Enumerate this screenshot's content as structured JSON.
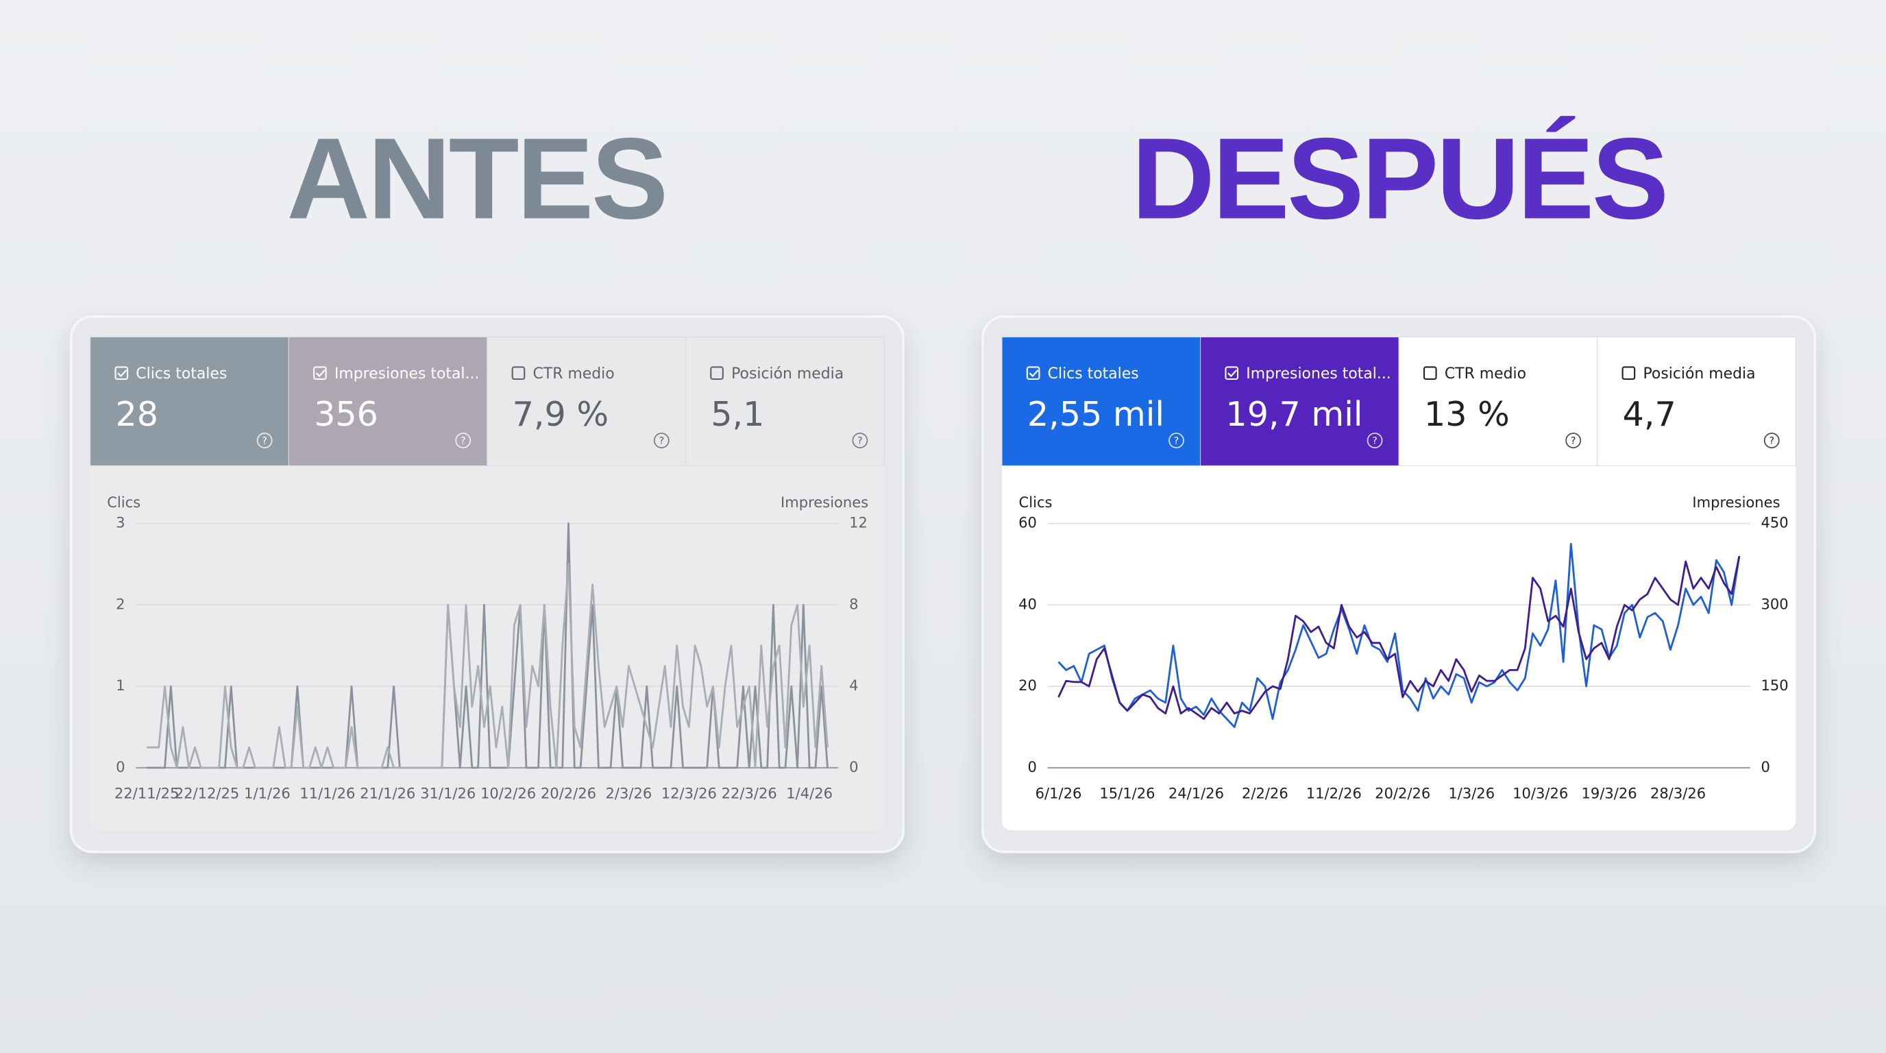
{
  "chart_data": [
    {
      "type": "line",
      "heading": "ANTES",
      "heading_color": "#7d8a96",
      "background": "#ebebed",
      "text_color": "#5f6368",
      "cards": [
        {
          "label": "Clics totales",
          "value": "28",
          "checked": true,
          "color": "#8e9ba4"
        },
        {
          "label": "Impresiones total...",
          "value": "356",
          "checked": true,
          "color": "#aca7b2"
        },
        {
          "label": "CTR medio",
          "value": "7,9 %",
          "checked": false,
          "color": "#e8e9eb"
        },
        {
          "label": "Posición media",
          "value": "5,1",
          "checked": false,
          "color": "#e8e9eb"
        }
      ],
      "y_label": "Clics",
      "y2_label": "Impresiones",
      "categories": [
        "22/11/25",
        null,
        null,
        null,
        null,
        null,
        null,
        null,
        null,
        null,
        "22/12/25",
        null,
        null,
        null,
        null,
        null,
        null,
        null,
        null,
        null,
        "1/1/26",
        null,
        null,
        null,
        null,
        null,
        null,
        null,
        null,
        null,
        "11/1/26",
        null,
        null,
        null,
        null,
        null,
        null,
        null,
        null,
        null,
        "21/1/26",
        null,
        null,
        null,
        null,
        null,
        null,
        null,
        null,
        null,
        "31/1/26",
        null,
        null,
        null,
        null,
        null,
        null,
        null,
        null,
        null,
        "10/2/26",
        null,
        null,
        null,
        null,
        null,
        null,
        null,
        null,
        null,
        "20/2/26",
        null,
        null,
        null,
        null,
        null,
        null,
        null,
        null,
        null,
        "2/3/26",
        null,
        null,
        null,
        null,
        null,
        null,
        null,
        null,
        null,
        "12/3/26",
        null,
        null,
        null,
        null,
        null,
        null,
        null,
        null,
        null,
        "22/3/26",
        null,
        null,
        null,
        null,
        null,
        null,
        null,
        null,
        null,
        "1/4/26",
        null,
        null,
        null
      ],
      "ylim": [
        0,
        3
      ],
      "yticks": [
        0,
        1,
        2,
        3
      ],
      "y2lim": [
        0,
        12
      ],
      "y2ticks": [
        0,
        4,
        8,
        12
      ],
      "series": [
        {
          "color": "#8a939b",
          "values": [
            0,
            0,
            0,
            0,
            1,
            0,
            0,
            0,
            0,
            0,
            0,
            0,
            0,
            0,
            1,
            0,
            0,
            0,
            0,
            0,
            0,
            0,
            0,
            0,
            0,
            1,
            0,
            0,
            0,
            0,
            0,
            0,
            0,
            0,
            1,
            0,
            0,
            0,
            0,
            0,
            0,
            1,
            0,
            0,
            0,
            0,
            0,
            0,
            0,
            0,
            2,
            1,
            0,
            1,
            0,
            0,
            2,
            0,
            0,
            0,
            0,
            1,
            2,
            0,
            0,
            0,
            2,
            0,
            0,
            0,
            3,
            0,
            0,
            1,
            2,
            0,
            0,
            0,
            1,
            0,
            0,
            0,
            0,
            1,
            0,
            0,
            0,
            0,
            1,
            0,
            0,
            0,
            0,
            0,
            1,
            0,
            0,
            0,
            0,
            1,
            0,
            1,
            0,
            0,
            2,
            0,
            0,
            1,
            0,
            2,
            0,
            0,
            1,
            0
          ]
        },
        {
          "color": "#a9aeb4",
          "axis": "y2",
          "values": [
            1,
            1,
            1,
            4,
            1,
            0,
            2,
            0,
            1,
            0,
            0,
            0,
            0,
            4,
            1,
            0,
            0,
            1,
            0,
            0,
            0,
            0,
            2,
            0,
            0,
            3,
            0,
            0,
            1,
            0,
            1,
            0,
            0,
            0,
            2,
            0,
            0,
            0,
            0,
            0,
            1,
            0,
            0,
            0,
            0,
            0,
            0,
            0,
            0,
            0,
            8,
            4,
            2,
            8,
            3,
            5,
            2,
            4,
            1,
            3,
            0,
            7,
            8,
            2,
            5,
            4,
            8,
            3,
            0,
            6,
            10,
            2,
            1,
            5,
            9,
            5,
            2,
            3,
            4,
            2,
            5,
            4,
            3,
            2,
            1,
            3,
            5,
            2,
            6,
            3,
            2,
            6,
            5,
            3,
            4,
            1,
            4,
            6,
            2,
            3,
            4,
            0,
            6,
            2,
            5,
            6,
            1,
            7,
            8,
            3,
            6,
            1,
            5,
            1
          ]
        }
      ]
    },
    {
      "type": "line",
      "heading": "DESPUÉS",
      "heading_color": "#5a2fc6",
      "background": "#ffffff",
      "text_color": "#202124",
      "cards": [
        {
          "label": "Clics totales",
          "value": "2,55 mil",
          "checked": true,
          "color": "#1a6ae6"
        },
        {
          "label": "Impresiones total...",
          "value": "19,7 mil",
          "checked": true,
          "color": "#5524bd"
        },
        {
          "label": "CTR medio",
          "value": "13 %",
          "checked": false,
          "color": "#ffffff"
        },
        {
          "label": "Posición media",
          "value": "4,7",
          "checked": false,
          "color": "#ffffff"
        }
      ],
      "y_label": "Clics",
      "y2_label": "Impresiones",
      "categories": [
        "6/1/26",
        null,
        null,
        null,
        null,
        null,
        null,
        null,
        null,
        "15/1/26",
        null,
        null,
        null,
        null,
        null,
        null,
        null,
        null,
        "24/1/26",
        null,
        null,
        null,
        null,
        null,
        null,
        null,
        null,
        "2/2/26",
        null,
        null,
        null,
        null,
        null,
        null,
        null,
        null,
        "11/2/26",
        null,
        null,
        null,
        null,
        null,
        null,
        null,
        null,
        "20/2/26",
        null,
        null,
        null,
        null,
        null,
        null,
        null,
        null,
        "1/3/26",
        null,
        null,
        null,
        null,
        null,
        null,
        null,
        null,
        "10/3/26",
        null,
        null,
        null,
        null,
        null,
        null,
        null,
        null,
        "19/3/26",
        null,
        null,
        null,
        null,
        null,
        null,
        null,
        null,
        "28/3/26",
        null,
        null,
        null,
        null,
        null,
        null,
        null,
        null
      ],
      "ylim": [
        0,
        60
      ],
      "yticks": [
        0,
        20,
        40,
        60
      ],
      "y2lim": [
        0,
        450
      ],
      "y2ticks": [
        0,
        150,
        300,
        450
      ],
      "series": [
        {
          "color": "#1f5fd6",
          "values": [
            26,
            24,
            25,
            21,
            28,
            29,
            30,
            22,
            16,
            14,
            17,
            18,
            19,
            17,
            16,
            30,
            17,
            14,
            15,
            13,
            17,
            14,
            12,
            10,
            16,
            14,
            22,
            20,
            12,
            21,
            24,
            29,
            35,
            31,
            27,
            28,
            34,
            39,
            34,
            28,
            35,
            30,
            29,
            26,
            33,
            19,
            17,
            14,
            22,
            17,
            20,
            18,
            23,
            22,
            16,
            21,
            20,
            21,
            24,
            21,
            19,
            22,
            33,
            30,
            34,
            46,
            26,
            55,
            34,
            20,
            35,
            34,
            27,
            30,
            38,
            40,
            32,
            37,
            38,
            36,
            29,
            35,
            44,
            40,
            42,
            38,
            51,
            48,
            40,
            52
          ]
        },
        {
          "color": "#3f1d8f",
          "axis": "y2",
          "values": [
            130,
            160,
            158,
            158,
            150,
            200,
            220,
            170,
            120,
            105,
            120,
            135,
            130,
            110,
            100,
            150,
            100,
            110,
            100,
            90,
            110,
            100,
            120,
            100,
            105,
            100,
            120,
            140,
            150,
            145,
            200,
            280,
            270,
            250,
            260,
            230,
            220,
            300,
            260,
            240,
            250,
            230,
            230,
            200,
            210,
            130,
            160,
            140,
            160,
            150,
            180,
            160,
            200,
            180,
            140,
            170,
            160,
            160,
            170,
            180,
            180,
            220,
            350,
            330,
            270,
            280,
            260,
            330,
            250,
            200,
            220,
            230,
            200,
            260,
            300,
            290,
            310,
            320,
            350,
            330,
            310,
            300,
            380,
            330,
            350,
            330,
            370,
            340,
            320,
            390
          ]
        }
      ]
    }
  ]
}
